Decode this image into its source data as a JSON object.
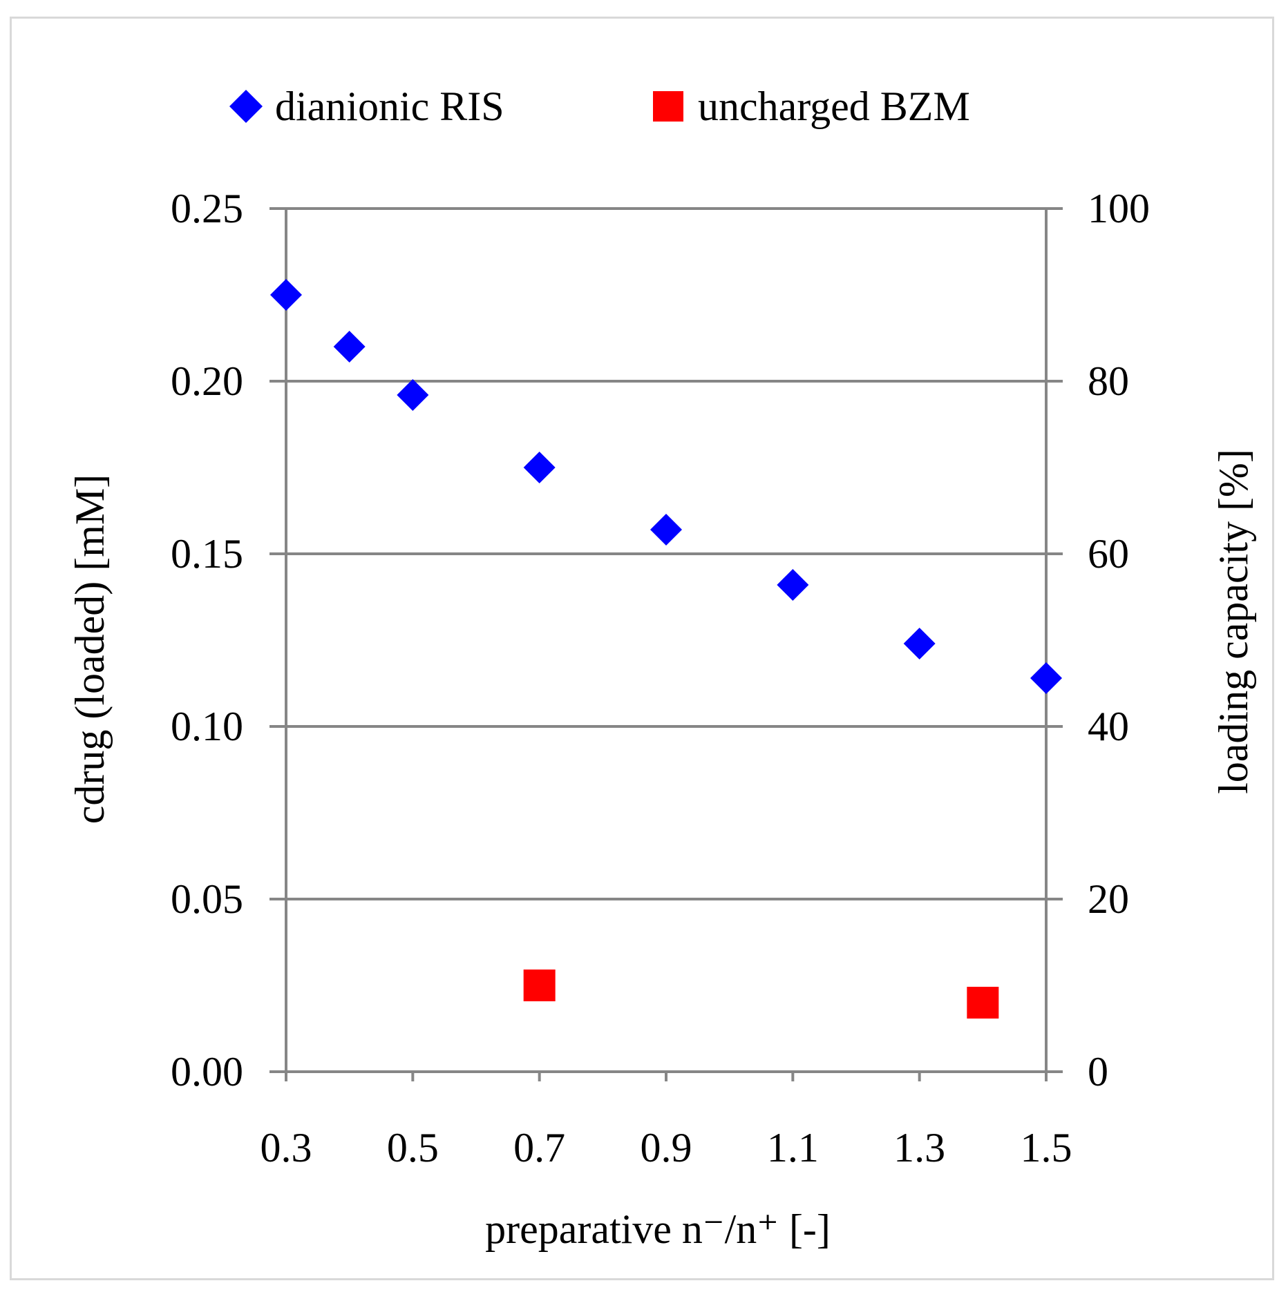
{
  "chart_data": {
    "type": "scatter",
    "xlabel": "preparative n⁻/n⁺ [-]",
    "ylabel": "cdrug (loaded) [mM]",
    "y2label": "loading capacity [%]",
    "xlim": [
      0.3,
      1.5
    ],
    "ylim": [
      0,
      0.25
    ],
    "y2lim": [
      0,
      100
    ],
    "x_ticks": [
      "0.3",
      "0.5",
      "0.7",
      "0.9",
      "1.1",
      "1.3",
      "1.5"
    ],
    "y_ticks": [
      "0.00",
      "0.05",
      "0.10",
      "0.15",
      "0.20",
      "0.25"
    ],
    "y2_ticks": [
      "0",
      "20",
      "40",
      "60",
      "80",
      "100"
    ],
    "grid": true,
    "legend_position": "top",
    "series": [
      {
        "name": "dianionic RIS",
        "marker": "diamond",
        "color": "#0000ff",
        "x": [
          0.3,
          0.4,
          0.5,
          0.7,
          0.9,
          1.1,
          1.3,
          1.5
        ],
        "y": [
          0.225,
          0.21,
          0.196,
          0.175,
          0.157,
          0.141,
          0.124,
          0.114
        ]
      },
      {
        "name": "uncharged BZM",
        "marker": "square",
        "color": "#ff0000",
        "x": [
          0.7,
          1.4
        ],
        "y": [
          0.025,
          0.02
        ]
      }
    ]
  }
}
